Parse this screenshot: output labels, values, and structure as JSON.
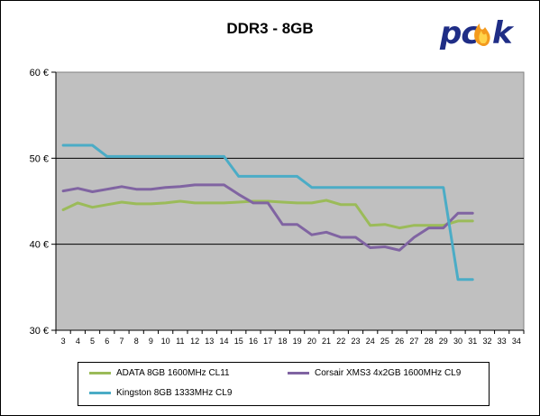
{
  "chart_data": {
    "type": "line",
    "title": "DDR3 - 8GB",
    "xlabel": "",
    "ylabel": "",
    "x": [
      3,
      4,
      5,
      6,
      7,
      8,
      9,
      10,
      11,
      12,
      13,
      14,
      15,
      16,
      17,
      18,
      19,
      20,
      21,
      22,
      23,
      24,
      25,
      26,
      27,
      28,
      29,
      30,
      31,
      32,
      33,
      34
    ],
    "y_ticks": [
      "30 €",
      "40 €",
      "50 €",
      "60 €"
    ],
    "ylim": [
      30,
      60
    ],
    "grid": "horizontal",
    "legend_position": "bottom",
    "plot_background": "#c0c0c0",
    "series": [
      {
        "name": "ADATA 8GB 1600MHz CL11",
        "color": "#9bbb59",
        "values": [
          44.0,
          44.8,
          44.3,
          44.6,
          44.9,
          44.7,
          44.7,
          44.8,
          45.0,
          44.8,
          44.8,
          44.8,
          44.9,
          45.0,
          45.0,
          44.9,
          44.8,
          44.8,
          45.1,
          44.6,
          44.6,
          42.2,
          42.3,
          41.9,
          42.2,
          42.2,
          42.2,
          42.7,
          42.7,
          null,
          null,
          null
        ]
      },
      {
        "name": "Corsair XMS3 4x2GB 1600MHz CL9",
        "color": "#8064a2",
        "values": [
          46.2,
          46.5,
          46.1,
          46.4,
          46.7,
          46.4,
          46.4,
          46.6,
          46.7,
          46.9,
          46.9,
          46.9,
          45.8,
          44.8,
          44.8,
          42.3,
          42.3,
          41.1,
          41.4,
          40.8,
          40.8,
          39.6,
          39.7,
          39.3,
          40.8,
          41.9,
          41.9,
          43.6,
          43.6,
          null,
          null,
          null
        ]
      },
      {
        "name": "Kingston 8GB 1333MHz CL9",
        "color": "#4bacc6",
        "values": [
          51.5,
          51.5,
          51.5,
          50.2,
          50.2,
          50.2,
          50.2,
          50.2,
          50.2,
          50.2,
          50.2,
          50.2,
          47.9,
          47.9,
          47.9,
          47.9,
          47.9,
          46.6,
          46.6,
          46.6,
          46.6,
          46.6,
          46.6,
          46.6,
          46.6,
          46.6,
          46.6,
          35.9,
          35.9,
          null,
          null,
          null
        ]
      }
    ]
  },
  "logo": {
    "text": "pcsk",
    "color": "#1f2d86",
    "flame_color": "#f39a1e"
  }
}
